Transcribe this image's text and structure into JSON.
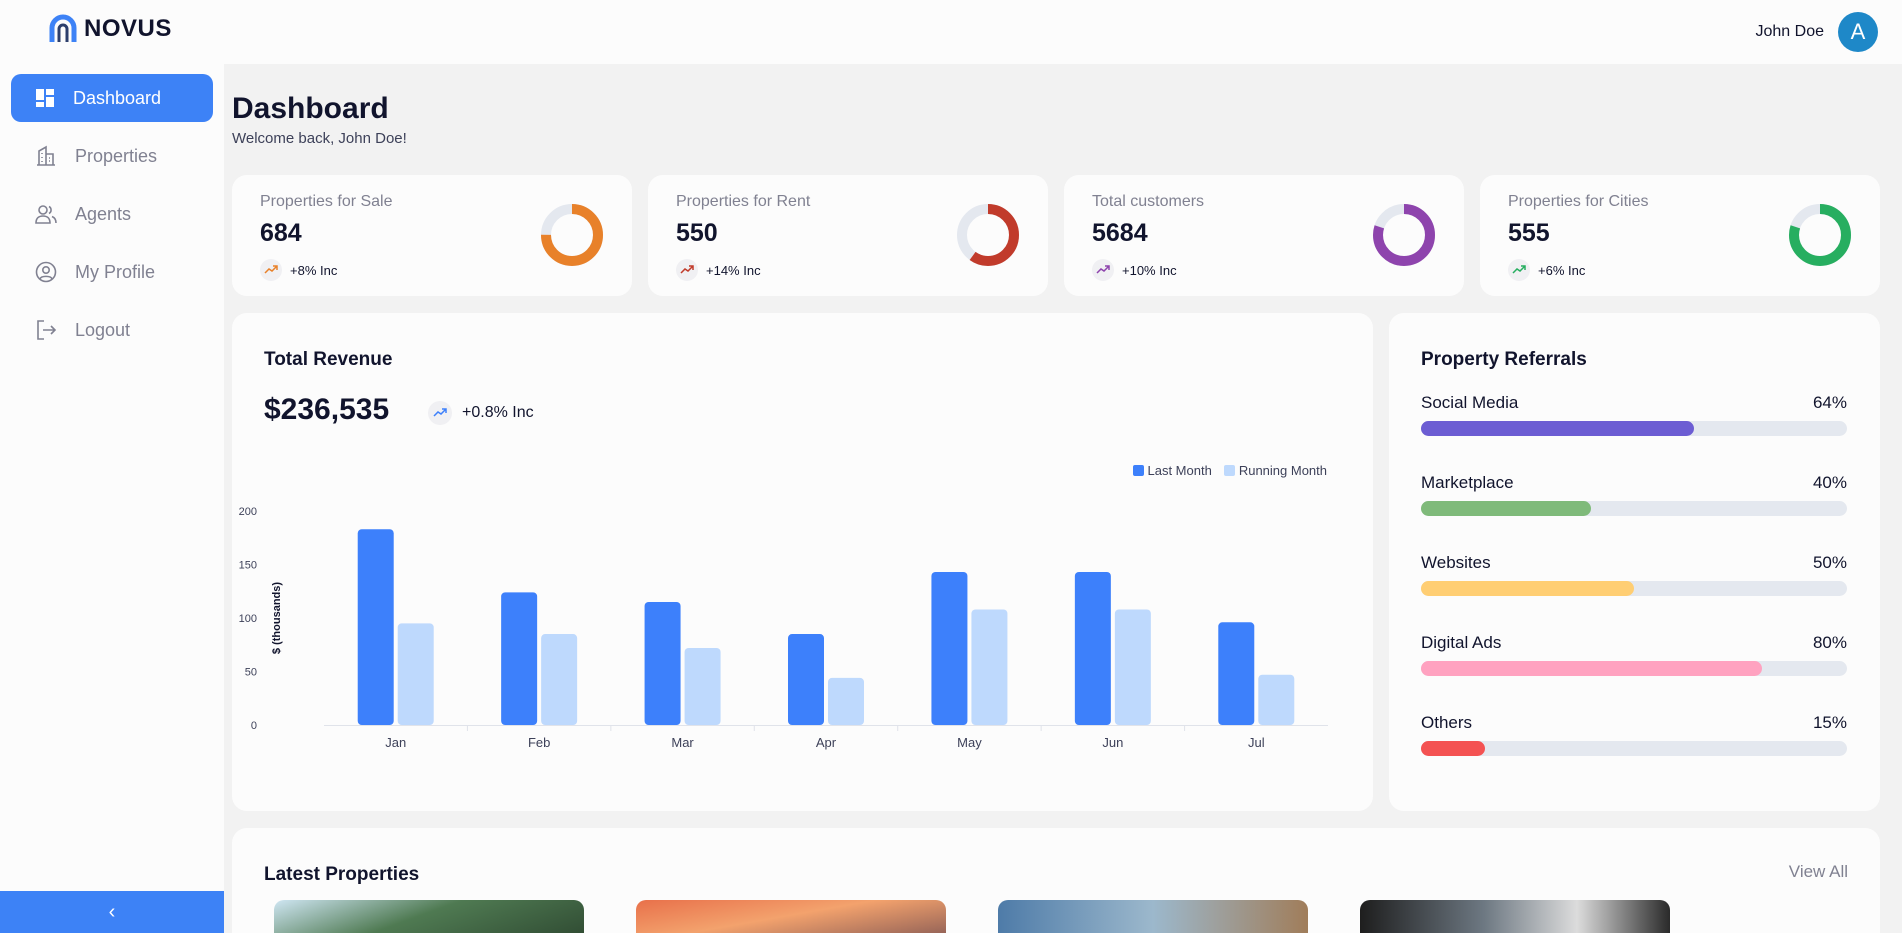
{
  "app": {
    "name": "NOVUS"
  },
  "user": {
    "name": "John Doe",
    "initial": "A"
  },
  "sidebar": {
    "items": [
      {
        "label": "Dashboard",
        "icon": "dashboard-icon",
        "active": true
      },
      {
        "label": "Properties",
        "icon": "building-icon",
        "active": false
      },
      {
        "label": "Agents",
        "icon": "people-icon",
        "active": false
      },
      {
        "label": "My Profile",
        "icon": "user-circle-icon",
        "active": false
      },
      {
        "label": "Logout",
        "icon": "logout-icon",
        "active": false
      }
    ],
    "collapse_icon": "‹"
  },
  "page": {
    "title": "Dashboard",
    "subtitle": "Welcome back, John Doe!"
  },
  "stats": [
    {
      "title": "Properties for Sale",
      "value": "684",
      "trend": "+8% Inc",
      "color": "#e8812a",
      "fraction": 0.75
    },
    {
      "title": "Properties for Rent",
      "value": "550",
      "trend": "+14% Inc",
      "color": "#c13b2b",
      "fraction": 0.6
    },
    {
      "title": "Total customers",
      "value": "5684",
      "trend": "+10% Inc",
      "color": "#8e44ad",
      "fraction": 0.8
    },
    {
      "title": "Properties for Cities",
      "value": "555",
      "trend": "+6% Inc",
      "color": "#27ae60",
      "fraction": 0.8
    }
  ],
  "revenue": {
    "title": "Total Revenue",
    "value": "$236,535",
    "trend": "+0.8% Inc"
  },
  "chart_data": {
    "type": "bar",
    "categories": [
      "Jan",
      "Feb",
      "Mar",
      "Apr",
      "May",
      "Jun",
      "Jul"
    ],
    "series": [
      {
        "name": "Last Month",
        "color": "#3d80fb",
        "values": [
          183,
          124,
          115,
          85,
          143,
          143,
          96
        ]
      },
      {
        "name": "Running Month",
        "color": "#bed9fd",
        "values": [
          95,
          85,
          72,
          44,
          108,
          108,
          47
        ]
      }
    ],
    "ylabel": "$ (thousands)",
    "xlabel": "",
    "ylim": [
      0,
      200
    ],
    "yticks": [
      0,
      50,
      100,
      150,
      200
    ],
    "legend": "top-right",
    "grid": false
  },
  "referrals": {
    "title": "Property Referrals",
    "items": [
      {
        "label": "Social Media",
        "percent": "64%",
        "value": 0.64,
        "color": "#6c5dd3"
      },
      {
        "label": "Marketplace",
        "percent": "40%",
        "value": 0.4,
        "color": "#7fba7a"
      },
      {
        "label": "Websites",
        "percent": "50%",
        "value": 0.5,
        "color": "#ffce73"
      },
      {
        "label": "Digital Ads",
        "percent": "80%",
        "value": 0.8,
        "color": "#ffa2c0"
      },
      {
        "label": "Others",
        "percent": "15%",
        "value": 0.15,
        "color": "#f45252"
      }
    ]
  },
  "latest": {
    "title": "Latest Properties",
    "view_all": "View All"
  }
}
